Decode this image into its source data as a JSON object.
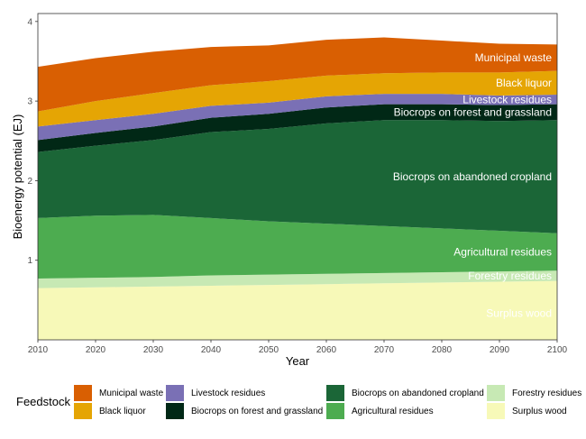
{
  "chart_data": {
    "type": "area",
    "stacked": true,
    "x": [
      2010,
      2020,
      2030,
      2040,
      2050,
      2060,
      2070,
      2080,
      2090,
      2100
    ],
    "xlabel": "Year",
    "ylabel": "Bioenergy potential (EJ)",
    "xlim": [
      2010,
      2100
    ],
    "ylim": [
      0,
      4.1
    ],
    "xticks": [
      2010,
      2020,
      2030,
      2040,
      2050,
      2060,
      2070,
      2080,
      2090,
      2100
    ],
    "yticks": [
      1,
      2,
      3,
      4
    ],
    "legend_title": "Feedstock",
    "legend_position": "bottom",
    "series": [
      {
        "name": "Surplus wood",
        "color": "#F7F9B8",
        "label_color": "#000000",
        "values": [
          0.65,
          0.66,
          0.67,
          0.68,
          0.69,
          0.7,
          0.71,
          0.72,
          0.73,
          0.74
        ]
      },
      {
        "name": "Forestry residues",
        "color": "#C7E9B4",
        "label_color": "#000000",
        "values": [
          0.12,
          0.12,
          0.12,
          0.13,
          0.13,
          0.13,
          0.13,
          0.13,
          0.13,
          0.13
        ]
      },
      {
        "name": "Agricultural residues",
        "color": "#4DAC50",
        "label_color": "#ffffff",
        "values": [
          0.76,
          0.78,
          0.78,
          0.72,
          0.67,
          0.63,
          0.59,
          0.55,
          0.51,
          0.47
        ]
      },
      {
        "name": "Biocrops on abandoned cropland",
        "color": "#1B6637",
        "label_color": "#ffffff",
        "values": [
          0.83,
          0.88,
          0.94,
          1.08,
          1.16,
          1.26,
          1.33,
          1.36,
          1.38,
          1.42
        ]
      },
      {
        "name": "Biocrops on forest and grassland",
        "color": "#012816",
        "label_color": "#ffffff",
        "values": [
          0.15,
          0.16,
          0.17,
          0.18,
          0.19,
          0.2,
          0.2,
          0.2,
          0.2,
          0.2
        ]
      },
      {
        "name": "Livestock residues",
        "color": "#7A70B5",
        "label_color": "#ffffff",
        "values": [
          0.17,
          0.16,
          0.16,
          0.15,
          0.14,
          0.14,
          0.13,
          0.13,
          0.12,
          0.12
        ]
      },
      {
        "name": "Black liquor",
        "color": "#E5A504",
        "label_color": "#ffffff",
        "values": [
          0.19,
          0.24,
          0.26,
          0.26,
          0.27,
          0.26,
          0.26,
          0.27,
          0.29,
          0.3
        ]
      },
      {
        "name": "Municipal waste",
        "color": "#D95F02",
        "label_color": "#ffffff",
        "values": [
          0.56,
          0.54,
          0.52,
          0.48,
          0.45,
          0.45,
          0.45,
          0.4,
          0.36,
          0.33
        ]
      }
    ],
    "legend_order": [
      "Municipal waste",
      "Black liquor",
      "Livestock residues",
      "Biocrops on forest and grassland",
      "Biocrops on abandoned cropland",
      "Agricultural residues",
      "Forestry residues",
      "Surplus wood"
    ]
  }
}
